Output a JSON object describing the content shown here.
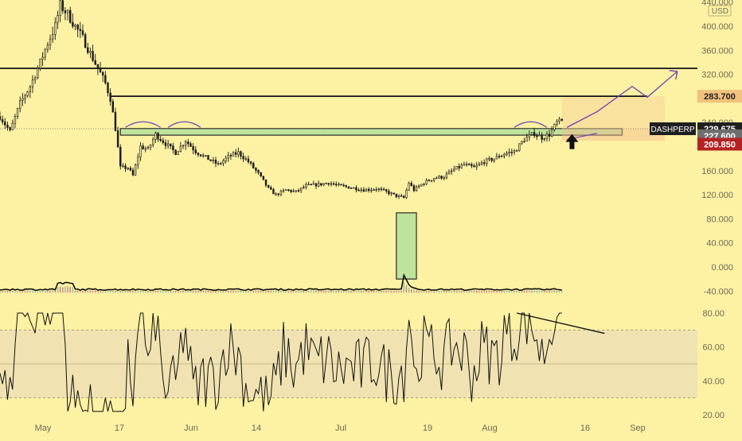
{
  "colors": {
    "background": "#fdf1a3",
    "candle": "#1a1a1a",
    "zone_fill": "#bfe39a",
    "zone_stroke": "#2a2a2a",
    "projection_line": "#6b3fb8",
    "resistance_line": "#111111",
    "rsi_band": "#efe0b4",
    "price_badge_current": "#1f1f1f",
    "price_badge_upper": "#f1c27d",
    "price_badge_lower": "#b42323",
    "price_badge_gray": "#6e6e6e",
    "arrow": "#111111",
    "axis_text": "#6f6a55"
  },
  "header": {
    "currency": "USD"
  },
  "chart_data": [
    {
      "type": "candlestick",
      "symbol": "DASHPERP",
      "currency": "USD",
      "x_ticks": [
        "May",
        "17",
        "Jun",
        "14",
        "Jul",
        "19",
        "Aug",
        "16",
        "Sep"
      ],
      "y_ticks": [
        "440.000",
        "400.000",
        "360.000",
        "320.000",
        "280.000",
        "240.000",
        "200.000",
        "160.000",
        "120.000",
        "80.000",
        "40.000",
        "0.000",
        "-40.000"
      ],
      "ylim": [
        -40,
        440
      ],
      "price_labels": {
        "current": "229.675",
        "upper": "283.700",
        "level_a": "227.600",
        "level_b": "209.850"
      },
      "horizontal_lines": [
        330,
        283.7
      ],
      "support_zone": [
        219,
        230
      ],
      "price_anchors": [
        {
          "t": 0,
          "v": 250
        },
        {
          "t": 4,
          "v": 225
        },
        {
          "t": 8,
          "v": 272
        },
        {
          "t": 12,
          "v": 300
        },
        {
          "t": 16,
          "v": 340
        },
        {
          "t": 19,
          "v": 372
        },
        {
          "t": 22,
          "v": 400
        },
        {
          "t": 24,
          "v": 435
        },
        {
          "t": 27,
          "v": 420
        },
        {
          "t": 30,
          "v": 400
        },
        {
          "t": 33,
          "v": 380
        },
        {
          "t": 36,
          "v": 355
        },
        {
          "t": 39,
          "v": 330
        },
        {
          "t": 42,
          "v": 305
        },
        {
          "t": 44,
          "v": 280
        },
        {
          "t": 46,
          "v": 230
        },
        {
          "t": 48,
          "v": 165
        },
        {
          "t": 51,
          "v": 165
        },
        {
          "t": 53,
          "v": 152
        },
        {
          "t": 56,
          "v": 200
        },
        {
          "t": 59,
          "v": 195
        },
        {
          "t": 62,
          "v": 220
        },
        {
          "t": 66,
          "v": 205
        },
        {
          "t": 70,
          "v": 190
        },
        {
          "t": 74,
          "v": 210
        },
        {
          "t": 78,
          "v": 192
        },
        {
          "t": 82,
          "v": 182
        },
        {
          "t": 87,
          "v": 170
        },
        {
          "t": 91,
          "v": 183
        },
        {
          "t": 95,
          "v": 190
        },
        {
          "t": 99,
          "v": 175
        },
        {
          "t": 103,
          "v": 155
        },
        {
          "t": 107,
          "v": 130
        },
        {
          "t": 110,
          "v": 120
        },
        {
          "t": 114,
          "v": 128
        },
        {
          "t": 118,
          "v": 125
        },
        {
          "t": 122,
          "v": 135
        },
        {
          "t": 127,
          "v": 137
        },
        {
          "t": 131,
          "v": 140
        },
        {
          "t": 135,
          "v": 135
        },
        {
          "t": 140,
          "v": 132
        },
        {
          "t": 145,
          "v": 128
        },
        {
          "t": 150,
          "v": 130
        },
        {
          "t": 154,
          "v": 125
        },
        {
          "t": 158,
          "v": 118
        },
        {
          "t": 161,
          "v": 115
        },
        {
          "t": 163,
          "v": 140
        },
        {
          "t": 165,
          "v": 128
        },
        {
          "t": 169,
          "v": 140
        },
        {
          "t": 173,
          "v": 148
        },
        {
          "t": 177,
          "v": 150
        },
        {
          "t": 181,
          "v": 162
        },
        {
          "t": 185,
          "v": 170
        },
        {
          "t": 189,
          "v": 165
        },
        {
          "t": 193,
          "v": 175
        },
        {
          "t": 197,
          "v": 180
        },
        {
          "t": 201,
          "v": 188
        },
        {
          "t": 205,
          "v": 192
        },
        {
          "t": 209,
          "v": 212
        },
        {
          "t": 213,
          "v": 222
        },
        {
          "t": 216,
          "v": 215
        },
        {
          "t": 219,
          "v": 220
        },
        {
          "t": 222,
          "v": 240
        },
        {
          "t": 224,
          "v": 242
        }
      ],
      "projection_path": [
        {
          "t": 226,
          "v": 232
        },
        {
          "t": 238,
          "v": 258
        },
        {
          "t": 252,
          "v": 300
        },
        {
          "t": 258,
          "v": 282
        },
        {
          "t": 270,
          "v": 325
        }
      ],
      "volume_series_shape": "flat with spike near 19 Jul",
      "volume_spike_box": {
        "from_t": 158,
        "to_t": 166,
        "top_v": 90,
        "bottom_v": -20
      }
    },
    {
      "type": "line",
      "name_hint": "oscillator panel",
      "y_ticks": [
        "80.00",
        "60.00",
        "40.00",
        "20.00"
      ],
      "ylim": [
        20,
        80
      ],
      "band": [
        30,
        70
      ],
      "midline": 50,
      "trendline": [
        {
          "t": 206,
          "v": 80
        },
        {
          "t": 241,
          "v": 68
        }
      ]
    }
  ]
}
